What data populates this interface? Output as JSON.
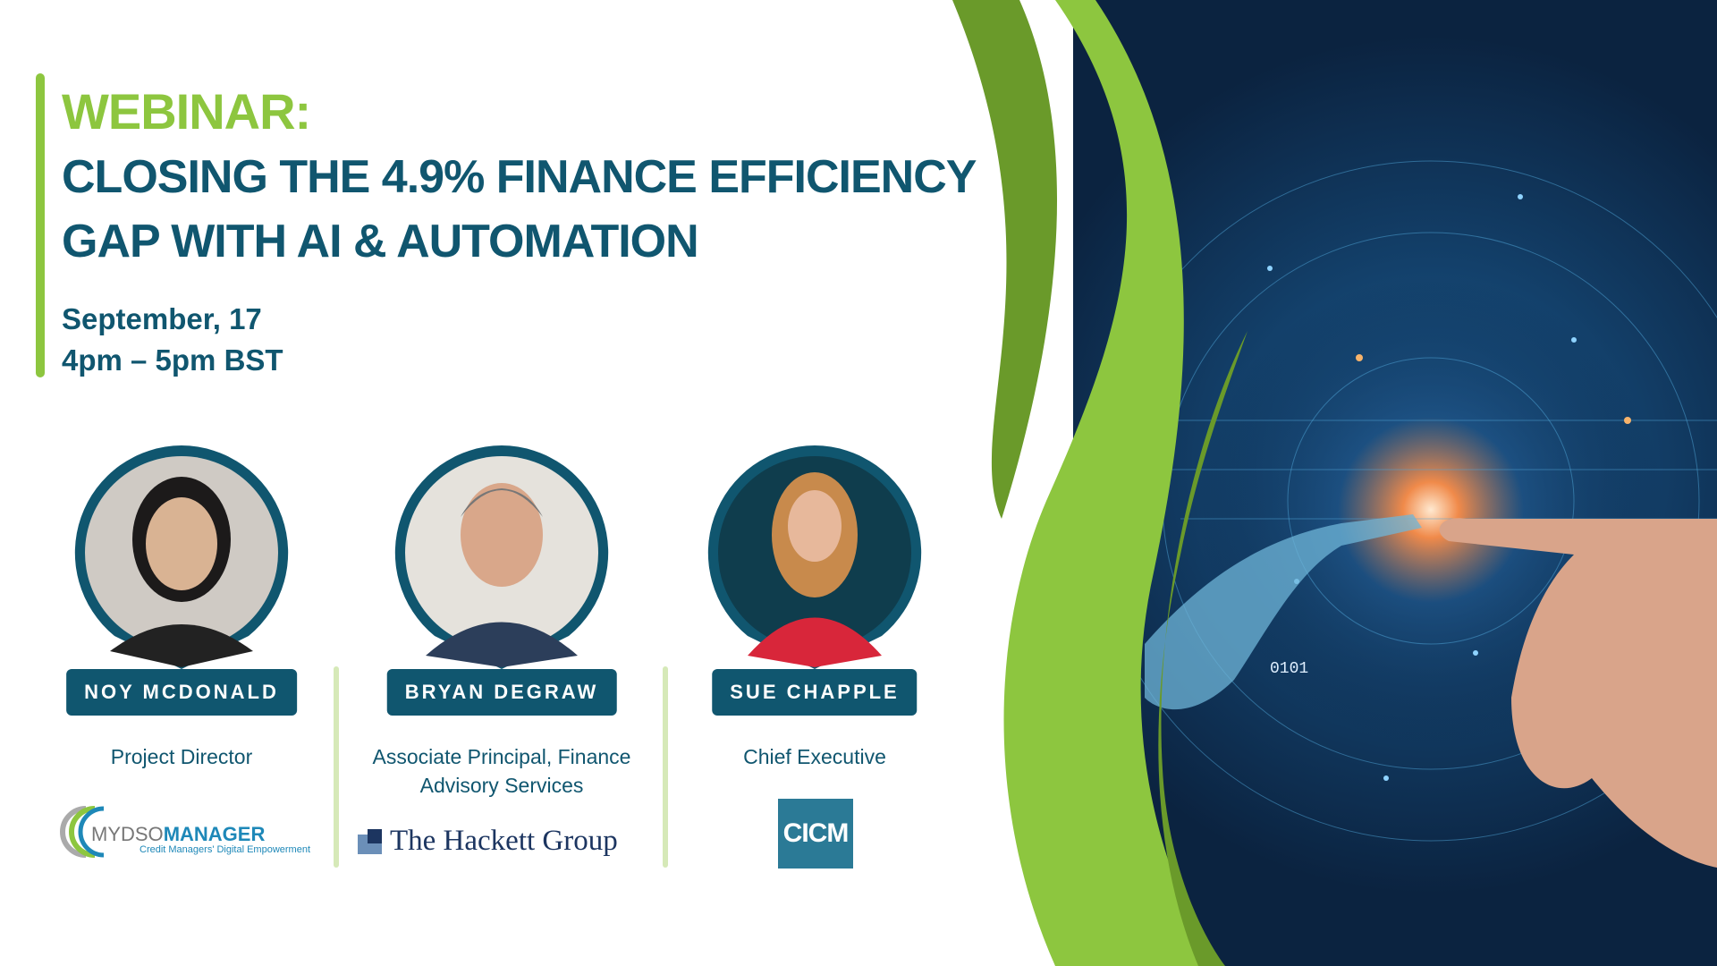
{
  "header": {
    "eyebrow": "WEBINAR:",
    "title_line1": "CLOSING THE 4.9% FINANCE EFFICIENCY",
    "title_line2": "GAP WITH AI & AUTOMATION",
    "date": "September, 17",
    "time": "4pm – 5pm BST"
  },
  "speakers": [
    {
      "name": "NOY MCDONALD",
      "role": "Project Director",
      "logo": {
        "name": "MYDSO MANAGER",
        "prefix": "MYDSO",
        "suffix": "MANAGER",
        "tagline": "Credit Managers' Digital Empowerment"
      }
    },
    {
      "name": "BRYAN DEGRAW",
      "role": "Associate Principal, Finance Advisory Services",
      "logo": {
        "name": "The Hackett Group"
      }
    },
    {
      "name": "SUE CHAPPLE",
      "role": "Chief Executive",
      "logo": {
        "name": "CICM"
      }
    }
  ],
  "colors": {
    "green": "#8dc63f",
    "dark_green": "#6a9a2a",
    "navy": "#10566f",
    "background_dark": "#0b2340"
  },
  "image": {
    "description_icon": "ai-robot-hand-touching-human-finger",
    "digits": "0101"
  }
}
